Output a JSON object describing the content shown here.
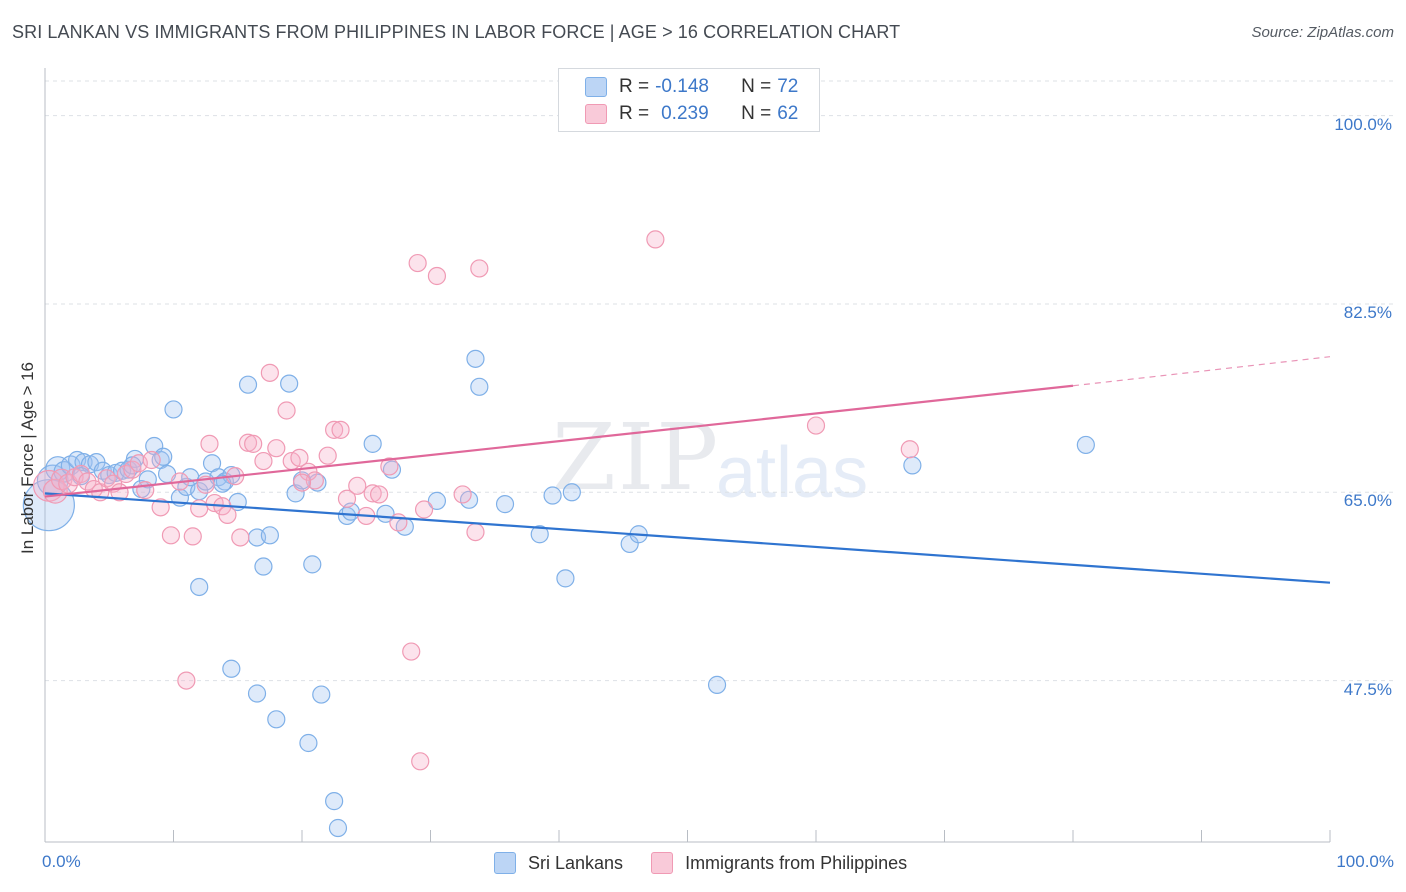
{
  "title": "SRI LANKAN VS IMMIGRANTS FROM PHILIPPINES IN LABOR FORCE | AGE > 16 CORRELATION CHART",
  "source": "Source: ZipAtlas.com",
  "watermark": {
    "zip": "ZIP",
    "atlas": "atlas"
  },
  "legend_top": {
    "rows": [
      {
        "r_label": "R = ",
        "r_value": "-0.148",
        "n_label": "N = ",
        "n_value": "72"
      },
      {
        "r_label": "R = ",
        "r_value": "0.239",
        "n_label": "N = ",
        "n_value": "62"
      }
    ]
  },
  "chart_data": {
    "type": "scatter",
    "title": "SRI LANKAN VS IMMIGRANTS FROM PHILIPPINES IN LABOR FORCE | AGE > 16 CORRELATION CHART",
    "xlabel": "",
    "ylabel": "In Labor Force | Age > 16",
    "xlim": [
      0,
      100
    ],
    "ylim": [
      32.5,
      103.5
    ],
    "y_ticks": [
      {
        "value": 100,
        "label": "100.0%"
      },
      {
        "value": 82.5,
        "label": "82.5%"
      },
      {
        "value": 65,
        "label": "65.0%"
      },
      {
        "value": 47.5,
        "label": "47.5%"
      }
    ],
    "x_ticks": [
      {
        "value": 0,
        "label": "0.0%"
      },
      {
        "value": 100,
        "label": "100.0%"
      }
    ],
    "series": [
      {
        "name": "Sri Lankans",
        "color": "#7fb0e8",
        "fill": "rgba(160,196,240,0.35)",
        "line_color": "#2f74d0",
        "trend": {
          "x0": 0,
          "y0": 64.9,
          "x1": 100,
          "y1": 56.6
        },
        "points": [
          [
            0.3,
            63.8
          ],
          [
            0.6,
            66.1
          ],
          [
            1.0,
            67.2
          ],
          [
            1.5,
            66.9
          ],
          [
            2.0,
            67.5
          ],
          [
            2.5,
            68.0
          ],
          [
            3.0,
            67.8
          ],
          [
            3.5,
            67.6
          ],
          [
            4.0,
            67.8
          ],
          [
            4.5,
            67.0
          ],
          [
            5.0,
            66.6
          ],
          [
            5.5,
            66.8
          ],
          [
            6.0,
            67.0
          ],
          [
            6.5,
            67.1
          ],
          [
            7.0,
            68.1
          ],
          [
            7.5,
            65.3
          ],
          [
            8.0,
            66.2
          ],
          [
            8.5,
            69.3
          ],
          [
            9.0,
            68.0
          ],
          [
            9.5,
            66.7
          ],
          [
            10.0,
            72.7
          ],
          [
            10.5,
            64.5
          ],
          [
            11.0,
            65.5
          ],
          [
            11.3,
            66.4
          ],
          [
            12.0,
            65.1
          ],
          [
            12.5,
            66.0
          ],
          [
            13.0,
            67.7
          ],
          [
            13.5,
            66.4
          ],
          [
            14.0,
            66.0
          ],
          [
            14.5,
            66.6
          ],
          [
            15.0,
            64.1
          ],
          [
            15.8,
            75.0
          ],
          [
            16.5,
            60.8
          ],
          [
            17.0,
            58.1
          ],
          [
            17.5,
            61.0
          ],
          [
            18.0,
            43.9
          ],
          [
            19.0,
            75.1
          ],
          [
            19.5,
            64.9
          ],
          [
            20.0,
            66.1
          ],
          [
            20.5,
            41.7
          ],
          [
            20.8,
            58.3
          ],
          [
            21.2,
            65.9
          ],
          [
            21.5,
            46.2
          ],
          [
            22.5,
            36.3
          ],
          [
            23.5,
            62.8
          ],
          [
            23.8,
            63.2
          ],
          [
            25.5,
            69.5
          ],
          [
            26.5,
            63.0
          ],
          [
            27.0,
            67.1
          ],
          [
            28.0,
            61.8
          ],
          [
            30.5,
            64.2
          ],
          [
            33.0,
            64.3
          ],
          [
            33.5,
            77.4
          ],
          [
            33.8,
            74.8
          ],
          [
            35.8,
            63.9
          ],
          [
            38.5,
            61.1
          ],
          [
            39.5,
            64.7
          ],
          [
            40.5,
            57.0
          ],
          [
            41.0,
            65.0
          ],
          [
            45.5,
            60.2
          ],
          [
            46.2,
            61.1
          ],
          [
            52.3,
            47.1
          ],
          [
            67.5,
            67.5
          ],
          [
            81.0,
            69.4
          ],
          [
            12.0,
            56.2
          ],
          [
            14.5,
            48.6
          ],
          [
            16.5,
            46.3
          ],
          [
            22.8,
            33.8
          ],
          [
            2.8,
            66.5
          ],
          [
            9.2,
            68.3
          ],
          [
            13.8,
            65.8
          ],
          [
            6.8,
            67.5
          ]
        ],
        "sizes": [
          30,
          18,
          14,
          12,
          11,
          10,
          10,
          10,
          10,
          10,
          10,
          10,
          10,
          10,
          10,
          10,
          10,
          10,
          10,
          10,
          10,
          10,
          10,
          10,
          10,
          10,
          10,
          10,
          10,
          10,
          10,
          10,
          10,
          10,
          10,
          10,
          10,
          10,
          10,
          10,
          10,
          10,
          10,
          10,
          10,
          10,
          10,
          10,
          10,
          10,
          10,
          10,
          10,
          10,
          10,
          10,
          10,
          10,
          10,
          10,
          10,
          10,
          10,
          10,
          10,
          10,
          10,
          10,
          10,
          10,
          10,
          10
        ]
      },
      {
        "name": "Immigrants from Philippines",
        "color": "#f09ab4",
        "fill": "rgba(245,175,200,0.35)",
        "line_color": "#e0689a",
        "trend": {
          "x0": 0,
          "y0": 64.6,
          "x1": 80,
          "y1": 74.9
        },
        "trend_dashed": {
          "x0": 80,
          "y0": 74.9,
          "x1": 100,
          "y1": 77.6
        },
        "points": [
          [
            0.3,
            65.6
          ],
          [
            0.8,
            65.1
          ],
          [
            1.3,
            66.2
          ],
          [
            1.8,
            65.8
          ],
          [
            2.3,
            66.4
          ],
          [
            2.8,
            66.7
          ],
          [
            3.3,
            66.0
          ],
          [
            3.8,
            65.3
          ],
          [
            4.3,
            65.0
          ],
          [
            4.8,
            66.3
          ],
          [
            5.3,
            65.8
          ],
          [
            5.8,
            65.0
          ],
          [
            6.3,
            66.7
          ],
          [
            6.8,
            67.1
          ],
          [
            7.3,
            67.7
          ],
          [
            7.8,
            65.2
          ],
          [
            8.3,
            68.0
          ],
          [
            9.0,
            63.6
          ],
          [
            9.8,
            61.0
          ],
          [
            10.5,
            66.0
          ],
          [
            11.0,
            47.5
          ],
          [
            11.5,
            60.9
          ],
          [
            12.0,
            63.5
          ],
          [
            12.5,
            65.7
          ],
          [
            12.8,
            69.5
          ],
          [
            13.2,
            64.0
          ],
          [
            13.8,
            63.7
          ],
          [
            14.2,
            62.9
          ],
          [
            14.8,
            66.5
          ],
          [
            15.2,
            60.8
          ],
          [
            15.8,
            69.6
          ],
          [
            16.2,
            69.5
          ],
          [
            17.0,
            67.9
          ],
          [
            17.5,
            76.1
          ],
          [
            18.0,
            69.1
          ],
          [
            18.8,
            72.6
          ],
          [
            19.2,
            67.9
          ],
          [
            19.8,
            68.2
          ],
          [
            20.5,
            66.9
          ],
          [
            21.0,
            66.1
          ],
          [
            22.0,
            68.4
          ],
          [
            22.5,
            70.8
          ],
          [
            23.0,
            70.8
          ],
          [
            23.5,
            64.4
          ],
          [
            24.3,
            65.6
          ],
          [
            25.0,
            62.8
          ],
          [
            25.5,
            64.9
          ],
          [
            26.0,
            64.8
          ],
          [
            26.8,
            67.4
          ],
          [
            27.5,
            62.2
          ],
          [
            28.5,
            50.2
          ],
          [
            29.0,
            86.3
          ],
          [
            29.2,
            40.0
          ],
          [
            29.5,
            63.4
          ],
          [
            30.5,
            85.1
          ],
          [
            32.5,
            64.8
          ],
          [
            33.5,
            61.3
          ],
          [
            33.8,
            85.8
          ],
          [
            47.5,
            88.5
          ],
          [
            60.0,
            71.2
          ],
          [
            67.3,
            69.0
          ],
          [
            20.0,
            65.9
          ]
        ],
        "sizes": [
          18,
          14,
          12,
          11,
          10,
          10,
          10,
          10,
          10,
          10,
          10,
          10,
          10,
          10,
          10,
          10,
          10,
          10,
          10,
          10,
          10,
          10,
          10,
          10,
          10,
          10,
          10,
          10,
          10,
          10,
          10,
          10,
          10,
          10,
          10,
          10,
          10,
          10,
          10,
          10,
          10,
          10,
          10,
          10,
          10,
          10,
          10,
          10,
          10,
          10,
          10,
          10,
          10,
          10,
          10,
          10,
          10,
          10,
          10,
          10,
          10,
          10
        ]
      }
    ],
    "legend": [
      "Sri Lankans",
      "Immigrants from Philippines"
    ],
    "grid": true
  }
}
